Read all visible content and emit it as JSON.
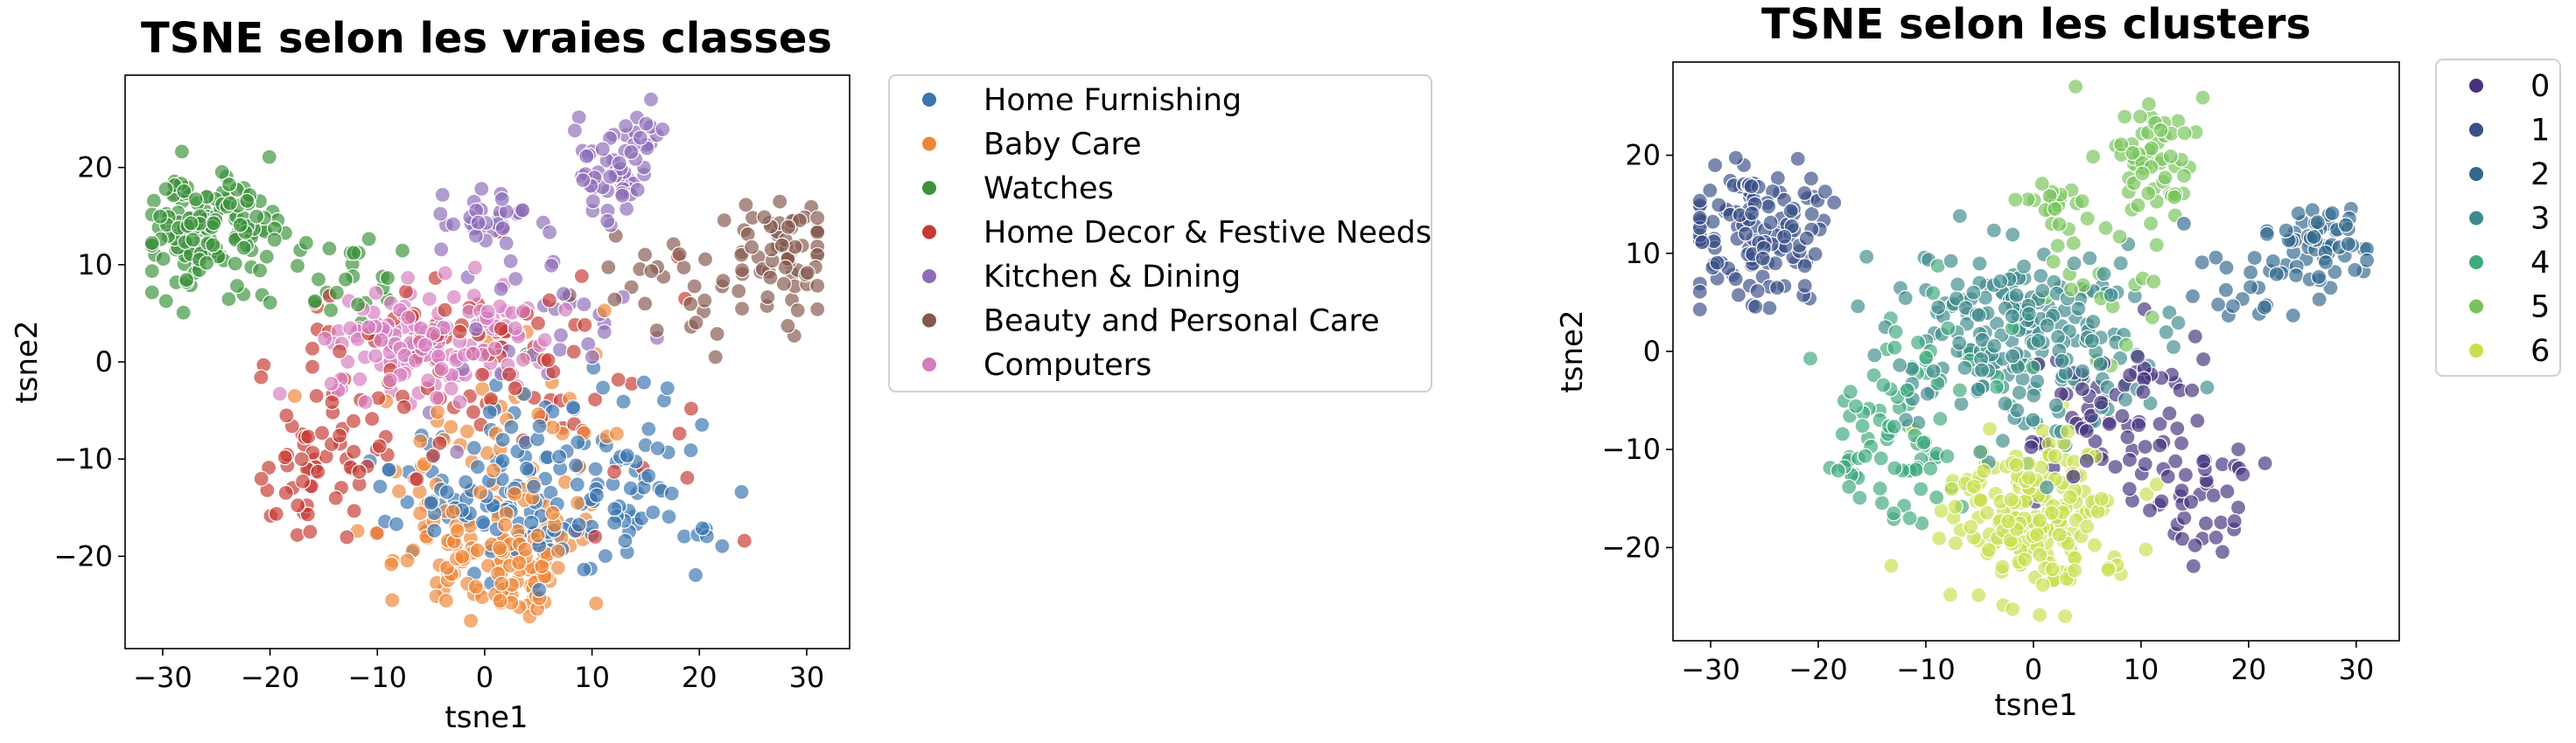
{
  "chart_data": [
    {
      "type": "scatter",
      "title": "TSNE selon les vraies classes",
      "xlabel": "tsne1",
      "ylabel": "tsne2",
      "xlim": [
        -33.5,
        34
      ],
      "ylim": [
        -29.5,
        29.5
      ],
      "xticks": [
        -30,
        -20,
        -10,
        0,
        10,
        20,
        30
      ],
      "yticks": [
        -20,
        -10,
        0,
        10,
        20
      ],
      "xtick_labels": [
        "−30",
        "−20",
        "−10",
        "0",
        "10",
        "20",
        "30"
      ],
      "ytick_labels": [
        "−20",
        "−10",
        "0",
        "10",
        "20"
      ],
      "grid": false,
      "legend_position": "outside-right",
      "series": [
        {
          "name": "Home Furnishing",
          "color": "#3a75b0",
          "clusters": [
            {
              "cx": 1,
              "cy": -14,
              "sx": 5,
              "sy": 4,
              "n": 110,
              "seed": 11
            },
            {
              "cx": 15,
              "cy": -13,
              "sx": 3,
              "sy": 4,
              "n": 45,
              "seed": 12
            },
            {
              "cx": 8,
              "cy": -8,
              "sx": 6,
              "sy": 4,
              "n": 25,
              "seed": 13
            }
          ]
        },
        {
          "name": "Baby Care",
          "color": "#ef8636",
          "clusters": [
            {
              "cx": 1,
              "cy": -20,
              "sx": 4.5,
              "sy": 3.5,
              "n": 130,
              "seed": 21
            },
            {
              "cx": 1,
              "cy": -7,
              "sx": 6,
              "sy": 5,
              "n": 50,
              "seed": 22
            }
          ]
        },
        {
          "name": "Watches",
          "color": "#3b923b",
          "clusters": [
            {
              "cx": -26,
              "cy": 13.5,
              "sx": 3,
              "sy": 3.2,
              "n": 150,
              "seed": 31
            },
            {
              "cx": -14,
              "cy": 8,
              "sx": 4,
              "sy": 3,
              "n": 30,
              "seed": 32
            }
          ]
        },
        {
          "name": "Home Decor & Festive Needs",
          "color": "#c53932",
          "clusters": [
            {
              "cx": -16,
              "cy": -12,
              "sx": 2.5,
              "sy": 3,
              "n": 45,
              "seed": 41
            },
            {
              "cx": -2,
              "cy": -2,
              "sx": 10,
              "sy": 7,
              "n": 110,
              "seed": 42
            }
          ]
        },
        {
          "name": "Kitchen & Dining",
          "color": "#8d6bb8",
          "clusters": [
            {
              "cx": 12,
              "cy": 20.5,
              "sx": 2.3,
              "sy": 2.5,
              "n": 60,
              "seed": 51
            },
            {
              "cx": 0,
              "cy": 14.5,
              "sx": 2,
              "sy": 1.8,
              "n": 30,
              "seed": 52
            },
            {
              "cx": 4,
              "cy": 4,
              "sx": 6,
              "sy": 5,
              "n": 35,
              "seed": 53
            }
          ]
        },
        {
          "name": "Beauty and Personal Care",
          "color": "#85584e",
          "clusters": [
            {
              "cx": 28,
              "cy": 12,
              "sx": 2.5,
              "sy": 2.5,
              "n": 55,
              "seed": 61
            },
            {
              "cx": 20,
              "cy": 7,
              "sx": 6,
              "sy": 4,
              "n": 40,
              "seed": 62
            }
          ]
        },
        {
          "name": "Computers",
          "color": "#d57dbe",
          "clusters": [
            {
              "cx": -7,
              "cy": 2,
              "sx": 4,
              "sy": 3,
              "n": 110,
              "seed": 71
            },
            {
              "cx": 1,
              "cy": 2,
              "sx": 3,
              "sy": 3,
              "n": 40,
              "seed": 72
            }
          ]
        }
      ]
    },
    {
      "type": "scatter",
      "title": "TSNE selon les clusters",
      "xlabel": "tsne1",
      "ylabel": "tsne2",
      "xlim": [
        -33.5,
        34
      ],
      "ylim": [
        -29.5,
        29.5
      ],
      "xticks": [
        -30,
        -20,
        -10,
        0,
        10,
        20,
        30
      ],
      "yticks": [
        -20,
        -10,
        0,
        10,
        20
      ],
      "xtick_labels": [
        "−30",
        "−20",
        "−10",
        "0",
        "10",
        "20",
        "30"
      ],
      "ytick_labels": [
        "−20",
        "−10",
        "0",
        "10",
        "20"
      ],
      "grid": false,
      "legend_position": "outside-right",
      "series": [
        {
          "name": "0",
          "color": "#46327e",
          "clusters": [
            {
              "cx": 8,
              "cy": -6,
              "sx": 4,
              "sy": 4,
              "n": 70,
              "seed": 101
            },
            {
              "cx": 15,
              "cy": -15,
              "sx": 3,
              "sy": 3,
              "n": 45,
              "seed": 102
            }
          ]
        },
        {
          "name": "1",
          "color": "#3b5088",
          "clusters": [
            {
              "cx": -26,
              "cy": 12,
              "sx": 3.5,
              "sy": 3.5,
              "n": 140,
              "seed": 111
            }
          ]
        },
        {
          "name": "2",
          "color": "#33688d",
          "clusters": [
            {
              "cx": 27,
              "cy": 11,
              "sx": 2.5,
              "sy": 2.5,
              "n": 55,
              "seed": 121
            },
            {
              "cx": 20,
              "cy": 7,
              "sx": 4,
              "sy": 3,
              "n": 25,
              "seed": 122
            }
          ]
        },
        {
          "name": "3",
          "color": "#3f8b8c",
          "clusters": [
            {
              "cx": -2,
              "cy": 1,
              "sx": 6,
              "sy": 5,
              "n": 230,
              "seed": 131
            }
          ]
        },
        {
          "name": "4",
          "color": "#40a97e",
          "clusters": [
            {
              "cx": -14,
              "cy": -11,
              "sx": 3,
              "sy": 3.5,
              "n": 55,
              "seed": 141
            },
            {
              "cx": -10,
              "cy": -2,
              "sx": 4,
              "sy": 5,
              "n": 40,
              "seed": 142
            }
          ]
        },
        {
          "name": "5",
          "color": "#77c45a",
          "clusters": [
            {
              "cx": 11,
              "cy": 20,
              "sx": 2.2,
              "sy": 3,
              "n": 60,
              "seed": 151
            },
            {
              "cx": 1,
              "cy": 15,
              "sx": 2,
              "sy": 1.5,
              "n": 20,
              "seed": 152
            },
            {
              "cx": 7,
              "cy": 6,
              "sx": 3,
              "sy": 4,
              "n": 20,
              "seed": 153
            }
          ]
        },
        {
          "name": "6",
          "color": "#c8e04e",
          "clusters": [
            {
              "cx": 0,
              "cy": -17,
              "sx": 4.5,
              "sy": 4,
              "n": 200,
              "seed": 161
            }
          ]
        }
      ]
    }
  ]
}
